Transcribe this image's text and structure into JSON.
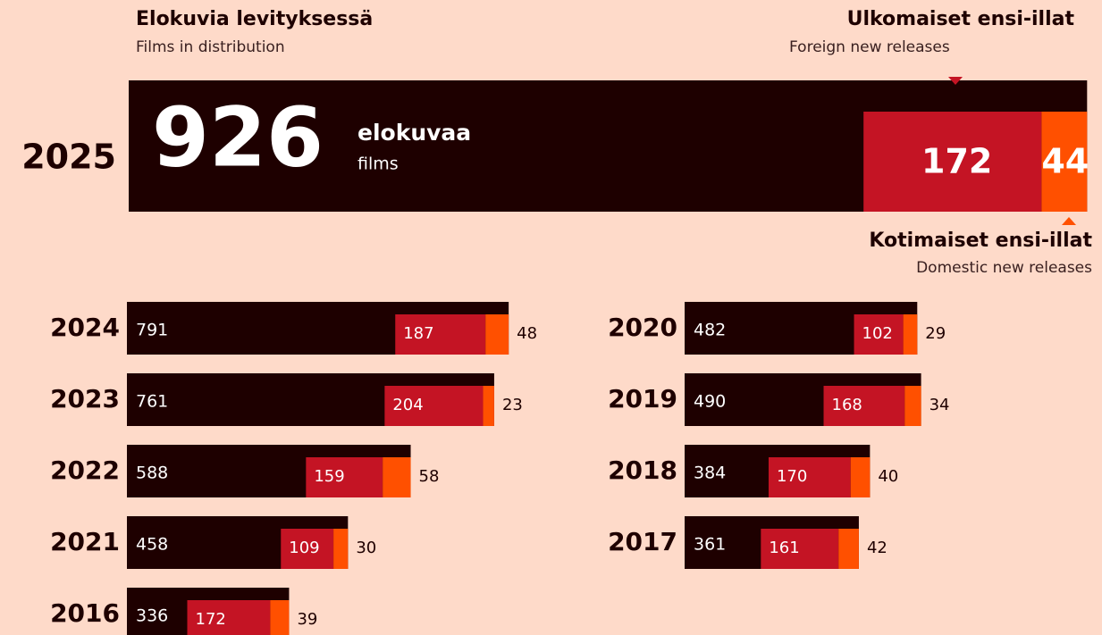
{
  "chart_data": {
    "type": "bar",
    "categories": [
      "2025",
      "2024",
      "2023",
      "2022",
      "2021",
      "2020",
      "2019",
      "2018",
      "2017",
      "2016"
    ],
    "series": [
      {
        "name": "Elokuvia levityksessä",
        "subtitle": "Films in distribution",
        "color": "#1e0000",
        "values": [
          926,
          791,
          761,
          588,
          458,
          482,
          490,
          384,
          361,
          336
        ]
      },
      {
        "name": "Ulkomaiset ensi-illat",
        "subtitle": "Foreign new releases",
        "color": "#c41424",
        "values": [
          172,
          187,
          204,
          159,
          109,
          102,
          168,
          170,
          161,
          172
        ]
      },
      {
        "name": "Kotimaiset ensi-illat",
        "subtitle": "Domestic new releases",
        "color": "#ff5000",
        "values": [
          44,
          48,
          23,
          58,
          30,
          29,
          34,
          40,
          42,
          39
        ]
      }
    ],
    "unit_label": "elokuvaa",
    "unit_label_en": "films"
  }
}
